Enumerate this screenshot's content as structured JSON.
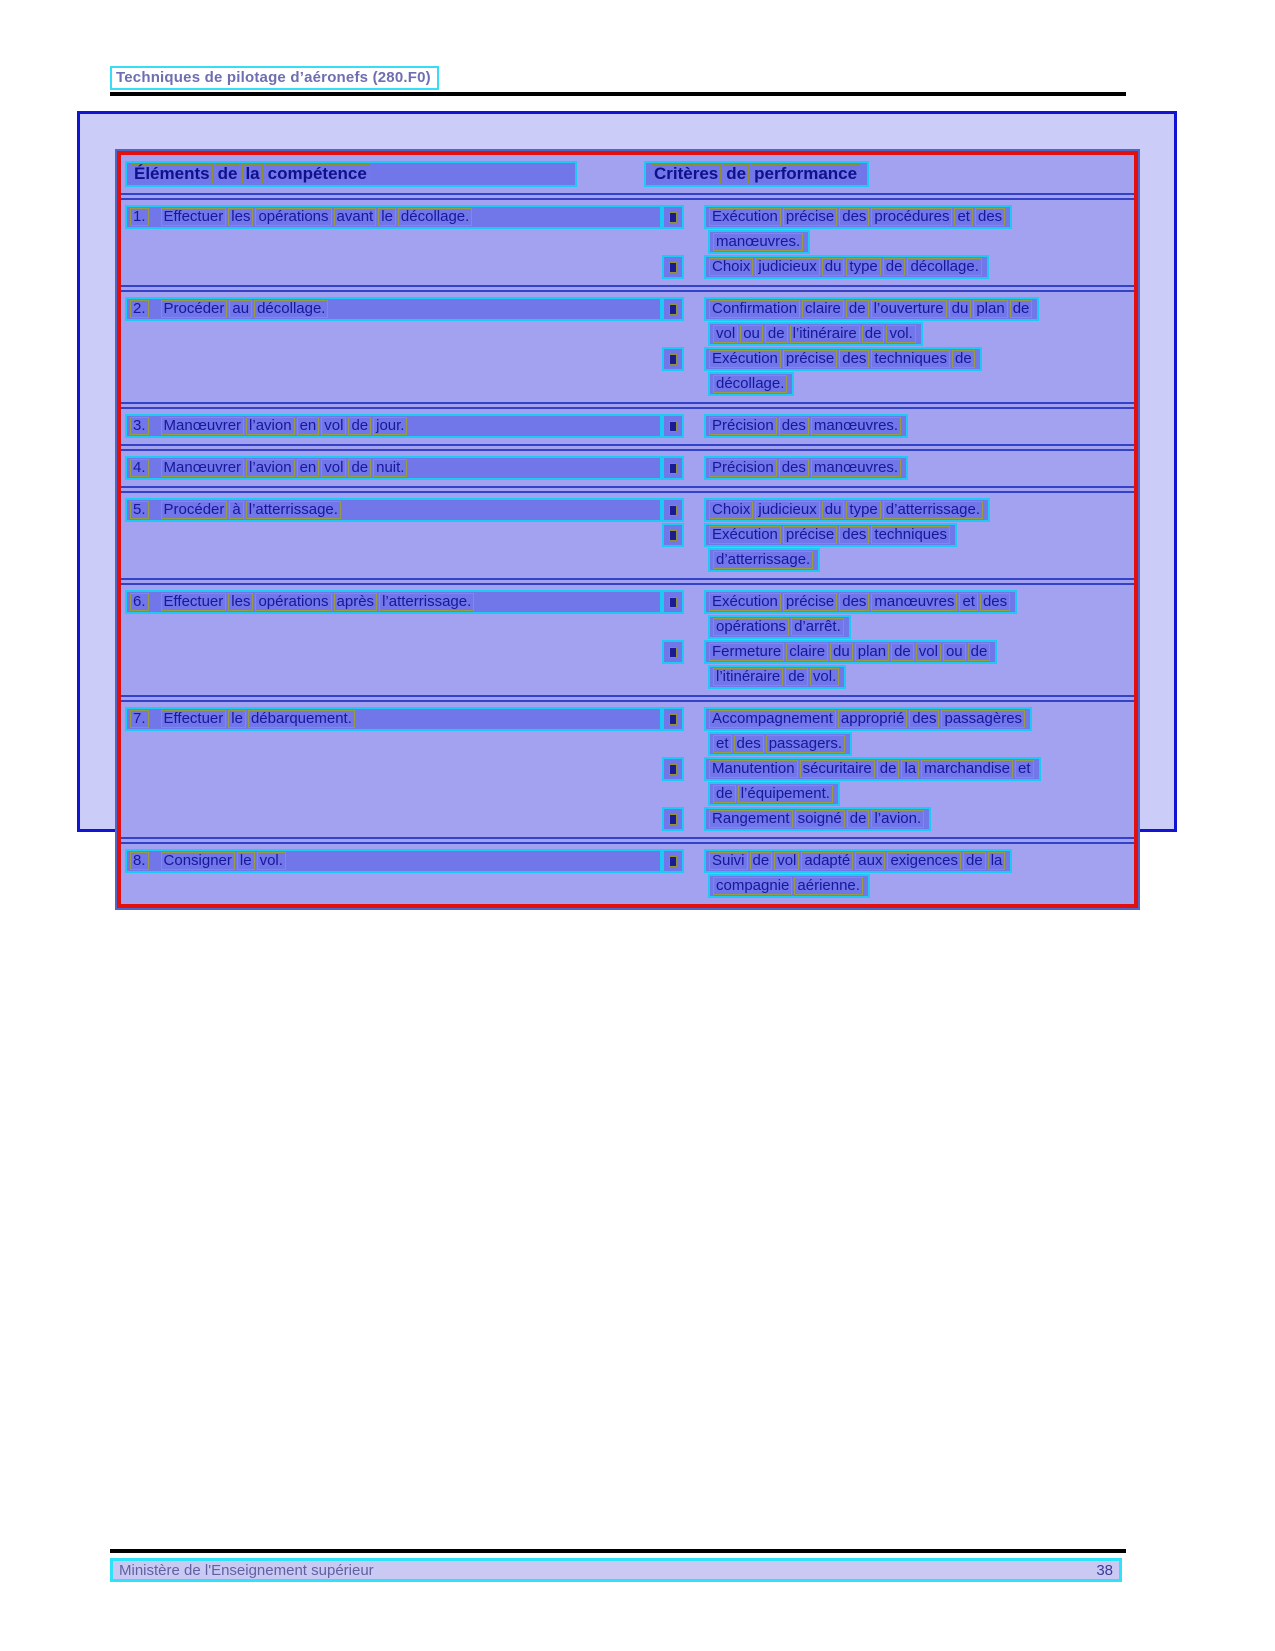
{
  "doc": {
    "header_title": "Techniques de pilotage d’aéronefs (280.F0)",
    "footer": {
      "left": "Ministère de l'Enseignement supérieur",
      "page_number": "38"
    }
  },
  "colors": {
    "panel_border": "#1313d2",
    "panel_fill": "#ccccf9",
    "table_border": "#e30f0f",
    "table_fill": "#a2a2f0",
    "line_highlight": "#7176e8",
    "line_box_cyan": "#1ec9f4",
    "word_box_olive": "#9a9a42",
    "text_navy": "#17179c",
    "separator_navy": "#3443c5"
  },
  "table": {
    "headers": {
      "left": "Éléments de la compétence",
      "right": "Critères de performance"
    },
    "rows": [
      {
        "num": "1.",
        "element": "Effectuer les opérations avant le décollage.",
        "criteria": [
          {
            "lines": [
              "Exécution précise des procédures et des",
              "manœuvres."
            ]
          },
          {
            "lines": [
              "Choix judicieux du type de décollage."
            ]
          }
        ]
      },
      {
        "num": "2.",
        "element": "Procéder au décollage.",
        "criteria": [
          {
            "lines": [
              "Confirmation claire de l’ouverture du plan de",
              "vol ou de l’itinéraire de vol."
            ]
          },
          {
            "lines": [
              "Exécution précise des techniques de",
              "décollage."
            ]
          }
        ]
      },
      {
        "num": "3.",
        "element": "Manœuvrer l’avion en vol de jour.",
        "criteria": [
          {
            "lines": [
              "Précision des manœuvres."
            ]
          }
        ]
      },
      {
        "num": "4.",
        "element": "Manœuvrer l’avion en vol de nuit.",
        "criteria": [
          {
            "lines": [
              "Précision des manœuvres."
            ]
          }
        ]
      },
      {
        "num": "5.",
        "element": "Procéder à l’atterrissage.",
        "criteria": [
          {
            "lines": [
              "Choix judicieux du type d’atterrissage."
            ]
          },
          {
            "lines": [
              "Exécution précise des techniques",
              "d’atterrissage."
            ]
          }
        ]
      },
      {
        "num": "6.",
        "element": "Effectuer les opérations après l’atterrissage.",
        "criteria": [
          {
            "lines": [
              "Exécution précise des manœuvres et des",
              "opérations d’arrêt."
            ]
          },
          {
            "lines": [
              "Fermeture claire du plan de vol ou de",
              "l’itinéraire de vol."
            ]
          }
        ]
      },
      {
        "num": "7.",
        "element": "Effectuer le débarquement.",
        "criteria": [
          {
            "lines": [
              "Accompagnement approprié des passagères",
              "et des passagers."
            ]
          },
          {
            "lines": [
              "Manutention sécuritaire de la marchandise et",
              "de l’équipement."
            ]
          },
          {
            "lines": [
              "Rangement soigné de l’avion."
            ]
          }
        ]
      },
      {
        "num": "8.",
        "element": "Consigner le vol.",
        "criteria": [
          {
            "lines": [
              "Suivi de vol adapté aux exigences de la",
              "compagnie aérienne."
            ]
          }
        ]
      }
    ]
  }
}
